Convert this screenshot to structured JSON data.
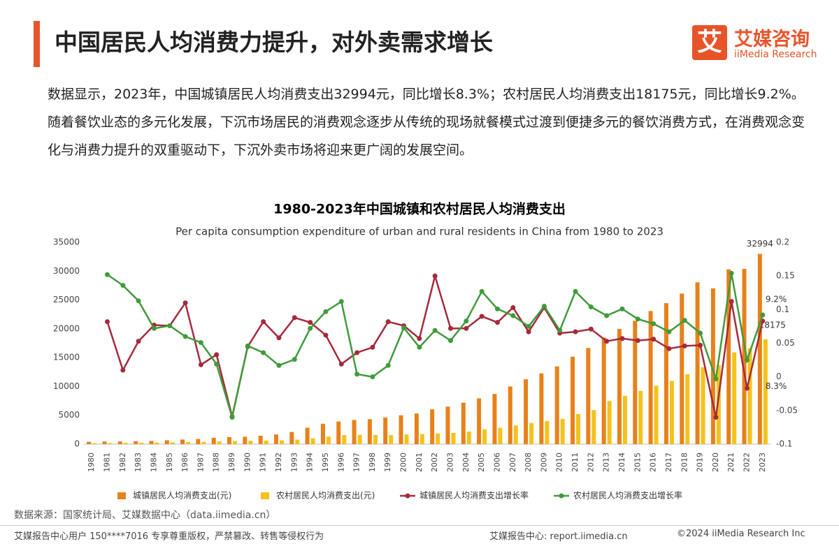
{
  "header": {
    "title": "中国居民人均消费力提升，对外卖需求增长",
    "logo_icon": "艾",
    "logo_name": "艾媒咨询",
    "logo_sub": "iiMedia Research"
  },
  "paragraph": "数据显示，2023年，中国城镇居民人均消费支出32994元，同比增长8.3%；农村居民人均消费支出18175元，同比增长9.2%。随着餐饮业态的多元化发展，下沉市场居民的消费观念逐步从传统的现场就餐模式过渡到便捷多元的餐饮消费方式，在消费观念变化与消费力提升的双重驱动下，下沉外卖市场将迎来更广阔的发展空间。",
  "chart_data": {
    "type": "bar",
    "title": "1980-2023年中国城镇和农村居民人均消费支出",
    "subtitle": "Per capita consumption expenditure of urban and rural residents in China from 1980 to 2023",
    "categories": [
      "1980",
      "1981",
      "1982",
      "1983",
      "1984",
      "1985",
      "1986",
      "1987",
      "1988",
      "1989",
      "1990",
      "1991",
      "1992",
      "1993",
      "1994",
      "1995",
      "1996",
      "1997",
      "1998",
      "1999",
      "2000",
      "2001",
      "2002",
      "2003",
      "2004",
      "2005",
      "2006",
      "2007",
      "2008",
      "2009",
      "2010",
      "2011",
      "2012",
      "2013",
      "2014",
      "2015",
      "2016",
      "2017",
      "2018",
      "2019",
      "2020",
      "2021",
      "2022",
      "2023"
    ],
    "series": [
      {
        "name": "城镇居民人均消费支出(元)",
        "type": "bar",
        "color": "#e8811a",
        "values": [
          412,
          456,
          471,
          506,
          559,
          673,
          799,
          884,
          1104,
          1211,
          1279,
          1454,
          1672,
          2111,
          2851,
          3538,
          3919,
          4186,
          4332,
          4616,
          4998,
          5309,
          6030,
          6511,
          7182,
          7943,
          8697,
          9997,
          11243,
          12265,
          13471,
          15161,
          16674,
          18488,
          19968,
          21392,
          23079,
          24445,
          26112,
          28063,
          27007,
          30307,
          30391,
          32994
        ],
        "value_labels": [
          null,
          null,
          null,
          null,
          null,
          null,
          null,
          null,
          null,
          null,
          null,
          null,
          null,
          null,
          null,
          null,
          null,
          null,
          null,
          null,
          null,
          null,
          null,
          null,
          null,
          null,
          null,
          null,
          null,
          null,
          null,
          null,
          null,
          null,
          null,
          null,
          null,
          null,
          null,
          null,
          null,
          null,
          null,
          "32994"
        ]
      },
      {
        "name": "农村居民人均消费支出(元)",
        "type": "bar",
        "color": "#f5c21b",
        "values": [
          162,
          191,
          220,
          248,
          274,
          317,
          357,
          398,
          477,
          535,
          585,
          620,
          659,
          770,
          1017,
          1310,
          1572,
          1617,
          1590,
          1577,
          1670,
          1741,
          1834,
          1943,
          2185,
          2555,
          2829,
          3224,
          3661,
          3993,
          4382,
          5221,
          5908,
          7485,
          8383,
          9223,
          10130,
          10955,
          12124,
          13328,
          13713,
          15916,
          16632,
          18175
        ],
        "value_labels": [
          null,
          null,
          null,
          null,
          null,
          null,
          null,
          null,
          null,
          null,
          null,
          null,
          null,
          null,
          null,
          null,
          null,
          null,
          null,
          null,
          null,
          null,
          null,
          null,
          null,
          null,
          null,
          null,
          null,
          null,
          null,
          null,
          null,
          null,
          null,
          null,
          null,
          null,
          null,
          null,
          null,
          null,
          null,
          "18175"
        ]
      },
      {
        "name": "城镇居民人均消费支出增长率",
        "type": "line",
        "axis": "y2",
        "color": "#a52a3c",
        "values": [
          null,
          0.082,
          0.01,
          0.053,
          0.077,
          0.076,
          0.11,
          0.018,
          0.033,
          -0.059,
          0.045,
          0.082,
          0.058,
          0.088,
          0.081,
          0.062,
          0.019,
          0.036,
          0.044,
          0.082,
          0.076,
          0.057,
          0.15,
          0.072,
          0.072,
          0.09,
          0.081,
          0.103,
          0.067,
          0.103,
          0.065,
          0.067,
          0.071,
          0.053,
          0.057,
          0.054,
          0.056,
          0.042,
          0.046,
          0.047,
          -0.06,
          0.112,
          -0.017,
          0.083
        ],
        "value_labels": [
          null,
          null,
          null,
          null,
          null,
          null,
          null,
          null,
          null,
          null,
          null,
          null,
          null,
          null,
          null,
          null,
          null,
          null,
          null,
          null,
          null,
          null,
          null,
          null,
          null,
          null,
          null,
          null,
          null,
          null,
          null,
          null,
          null,
          null,
          null,
          null,
          null,
          null,
          null,
          null,
          null,
          null,
          null,
          "8.3%"
        ]
      },
      {
        "name": "农村居民人均消费支出增长率",
        "type": "line",
        "axis": "y2",
        "color": "#3f9b3a",
        "values": [
          null,
          0.152,
          0.136,
          0.113,
          0.072,
          0.076,
          0.06,
          0.051,
          0.019,
          -0.06,
          0.046,
          0.036,
          0.017,
          0.026,
          0.072,
          0.097,
          0.112,
          0.004,
          0,
          0.017,
          0.073,
          0.044,
          0.069,
          0.054,
          0.083,
          0.127,
          0.101,
          0.091,
          0.075,
          0.105,
          0.069,
          0.127,
          0.104,
          0.091,
          0.101,
          0.086,
          0.079,
          0.067,
          0.084,
          0.065,
          -0.003,
          0.154,
          0.025,
          0.092
        ],
        "value_labels": [
          null,
          null,
          null,
          null,
          null,
          null,
          null,
          null,
          null,
          null,
          null,
          null,
          null,
          null,
          null,
          null,
          null,
          null,
          null,
          null,
          null,
          null,
          null,
          null,
          null,
          null,
          null,
          null,
          null,
          null,
          null,
          null,
          null,
          null,
          null,
          null,
          null,
          null,
          null,
          null,
          null,
          null,
          null,
          "9.2%"
        ]
      }
    ],
    "ylim": [
      0,
      35000
    ],
    "yticks": [
      0,
      5000,
      10000,
      15000,
      20000,
      25000,
      30000,
      35000
    ],
    "y2lim": [
      -0.1,
      0.2
    ],
    "y2ticks": [
      -0.1,
      -0.05,
      0,
      0.05,
      0.1,
      0.15,
      0.2
    ],
    "grid": false,
    "legend": "bottom"
  },
  "source": "数据来源：国家统计局、艾媒数据中心（data.iimedia.cn）",
  "footer": {
    "left": "艾媒报告中心用户 150****7016 专享尊重版权，严禁篡改、转售等侵权行为",
    "center": "艾媒报告中心: report.iimedia.cn",
    "right": "©2024  iiMedia Research  Inc"
  }
}
